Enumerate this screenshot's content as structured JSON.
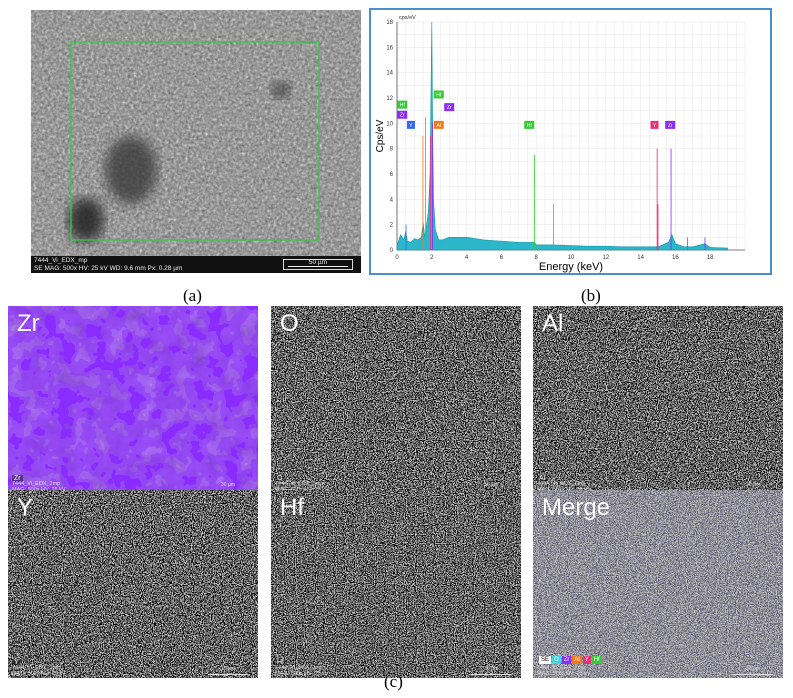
{
  "panel_a": {
    "label": "(a)",
    "footer_line1": "7444_Vi_EDX_mp",
    "footer_line2": "SE    MAG: 500x   HV: 25 kV   WD: 9.6 mm   Px: 0.28 µm",
    "scale": "50 µm"
  },
  "panel_b": {
    "label": "(b)",
    "unit_top": "cps/eV",
    "peak_tags": [
      "Hf",
      "Zr",
      "Y",
      "Hf",
      "Al",
      "Zr",
      "Hf",
      "Y",
      "Zr"
    ]
  },
  "panel_c": {
    "label": "(c)",
    "maps": [
      {
        "title": "Zr",
        "corner": "Zr",
        "color": "#8a2bff",
        "dark": "#5a10c0",
        "line1": "7444_Vi_EDX_2mp",
        "line2": "MAG: 500x   HV: 25 kV",
        "scale": "30 µm"
      },
      {
        "title": "O",
        "corner": "O",
        "color": "#3fd6e0",
        "dark": "#0a0a0a",
        "line1": "7444_Vi_EDX_2mp",
        "line2": "MAG: 500x   HV: 25 kV",
        "scale": "30 µm"
      },
      {
        "title": "Al",
        "corner": "Al",
        "color": "#f07a1a",
        "dark": "#0a0a0a",
        "line1": "7444_Vi_EDX_2mp",
        "line2": "MAG: 500x   HV: 25 kV",
        "scale": "30 µm"
      },
      {
        "title": "Y",
        "corner": "Y",
        "color": "#e8307a",
        "dark": "#0a0a0a",
        "line1": "7444_Vi_EDX_2mp",
        "line2": "MAG: 500x   HV: 25 kV",
        "scale": "30 µm"
      },
      {
        "title": "Hf",
        "corner": "Hf",
        "color": "#33cc33",
        "dark": "#0a0a0a",
        "line1": "7444_Vi_EDX_2mp",
        "line2": "MAG: 500x   HV: 25 kV",
        "scale": "30 µm"
      },
      {
        "title": "Merge",
        "corner": "",
        "color": "#a89ac8",
        "dark": "#5a5a70",
        "line1": "7444_Vi_EDX_2mp",
        "line2": "MAG: 500x   HV: 25 kV",
        "scale": "30 µm"
      }
    ],
    "merge_legend": [
      {
        "text": "SE",
        "color": "#ffffff"
      },
      {
        "text": "O",
        "color": "#3fd6e0"
      },
      {
        "text": "Zr",
        "color": "#8a2bff"
      },
      {
        "text": "Al",
        "color": "#f07a1a"
      },
      {
        "text": "Y",
        "color": "#e8307a"
      },
      {
        "text": "Hf",
        "color": "#33cc33"
      }
    ]
  },
  "chart_data": {
    "type": "line",
    "title": "",
    "xlabel": "Energy (keV)",
    "ylabel": "Cps/eV",
    "xlim": [
      0,
      20
    ],
    "ylim": [
      0,
      18
    ],
    "x_ticks": [
      0,
      2,
      4,
      6,
      8,
      10,
      12,
      14,
      16,
      18
    ],
    "y_ticks": [
      0,
      2,
      4,
      6,
      8,
      10,
      12,
      14,
      16,
      18
    ],
    "grid": true,
    "series": [
      {
        "x": [
          0,
          0.2,
          0.4,
          0.5,
          0.6,
          0.8,
          1.0,
          1.2,
          1.4,
          1.5,
          1.6,
          1.8,
          1.9,
          2.0,
          2.05,
          2.1,
          2.2,
          2.4,
          2.6,
          3.0,
          4.0,
          5.0,
          6.0,
          7.0,
          7.9,
          8.0,
          9.0,
          10.0,
          11.0,
          12.0,
          13.0,
          14.0,
          15.0,
          15.6,
          15.8,
          16.0,
          16.5,
          17.0,
          17.7,
          18.0,
          19.0
        ],
        "y": [
          0.3,
          1.2,
          0.8,
          1.5,
          0.7,
          0.6,
          0.9,
          0.8,
          1.0,
          2.2,
          1.0,
          3.0,
          6.0,
          18.0,
          9.0,
          4.0,
          1.6,
          0.8,
          0.8,
          1.0,
          1.0,
          0.8,
          0.7,
          0.6,
          0.6,
          0.4,
          0.4,
          0.35,
          0.3,
          0.3,
          0.25,
          0.25,
          0.25,
          0.6,
          1.2,
          0.5,
          0.25,
          0.25,
          0.5,
          0.2,
          0.15
        ]
      }
    ],
    "peak_lines": [
      {
        "x": 0.52,
        "y": 2.0,
        "color": "#3366ff"
      },
      {
        "x": 1.49,
        "y": 9.0,
        "color": "#f07a1a"
      },
      {
        "x": 1.64,
        "y": 10.5,
        "color": "#33cc33"
      },
      {
        "x": 1.92,
        "y": 9.0,
        "color": "#e8307a"
      },
      {
        "x": 2.04,
        "y": 10.0,
        "color": "#8a2bff"
      },
      {
        "x": 7.9,
        "y": 7.5,
        "color": "#33cc33"
      },
      {
        "x": 9.0,
        "y": 3.6,
        "color": "#33cc33"
      },
      {
        "x": 14.95,
        "y": 8.0,
        "color": "#e8307a"
      },
      {
        "x": 15.75,
        "y": 8.0,
        "color": "#8a2bff"
      },
      {
        "x": 15.0,
        "y": 3.6,
        "color": "#e8307a"
      },
      {
        "x": 16.7,
        "y": 1.0,
        "color": "#e8307a"
      },
      {
        "x": 17.7,
        "y": 1.0,
        "color": "#8a2bff"
      }
    ]
  }
}
